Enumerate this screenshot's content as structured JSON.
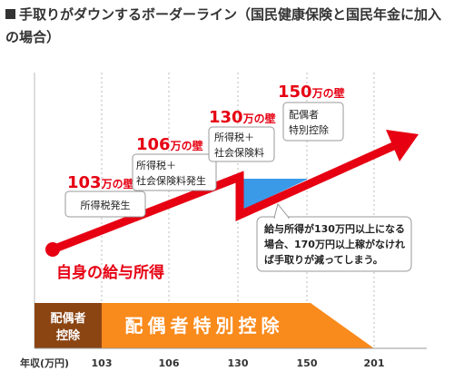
{
  "page_title": "手取りがダウンするボーダーライン（国民健康保険と国民年金に加入の場合）",
  "colors": {
    "accent_red": "#e60012",
    "orange": "#f98a1c",
    "brown": "#8b4513",
    "blue": "#3a9ae8",
    "grid": "#bbbbbb"
  },
  "chart_data": {
    "type": "line",
    "title": "手取りがダウンするボーダーライン（国民健康保険と国民年金に加入の場合）",
    "xlabel": "年収(万円)",
    "ylabel": "",
    "x_ticks": [
      "103",
      "106",
      "130",
      "150",
      "201"
    ],
    "series": [
      {
        "name": "自身の給与所得",
        "shape": "rising line with a drop at 130"
      }
    ],
    "walls": [
      {
        "label_num": "103",
        "label_suffix": "万の壁",
        "note": [
          "所得税発生"
        ]
      },
      {
        "label_num": "106",
        "label_suffix": "万の壁",
        "note": [
          "所得税＋",
          "社会保険料発生"
        ]
      },
      {
        "label_num": "130",
        "label_suffix": "万の壁",
        "note": [
          "所得税＋",
          "社会保険料"
        ]
      },
      {
        "label_num": "150",
        "label_suffix": "万の壁",
        "note": [
          "配偶者",
          "特別控除"
        ]
      }
    ],
    "callout": [
      "給与所得が130万円以上になる",
      "場合、170万円以上稼がなけれ",
      "ば手取りが減ってしまう。"
    ],
    "deduction_bar": {
      "left_label": [
        "配偶者",
        "控除"
      ],
      "main_label": "配偶者特別控除"
    }
  }
}
